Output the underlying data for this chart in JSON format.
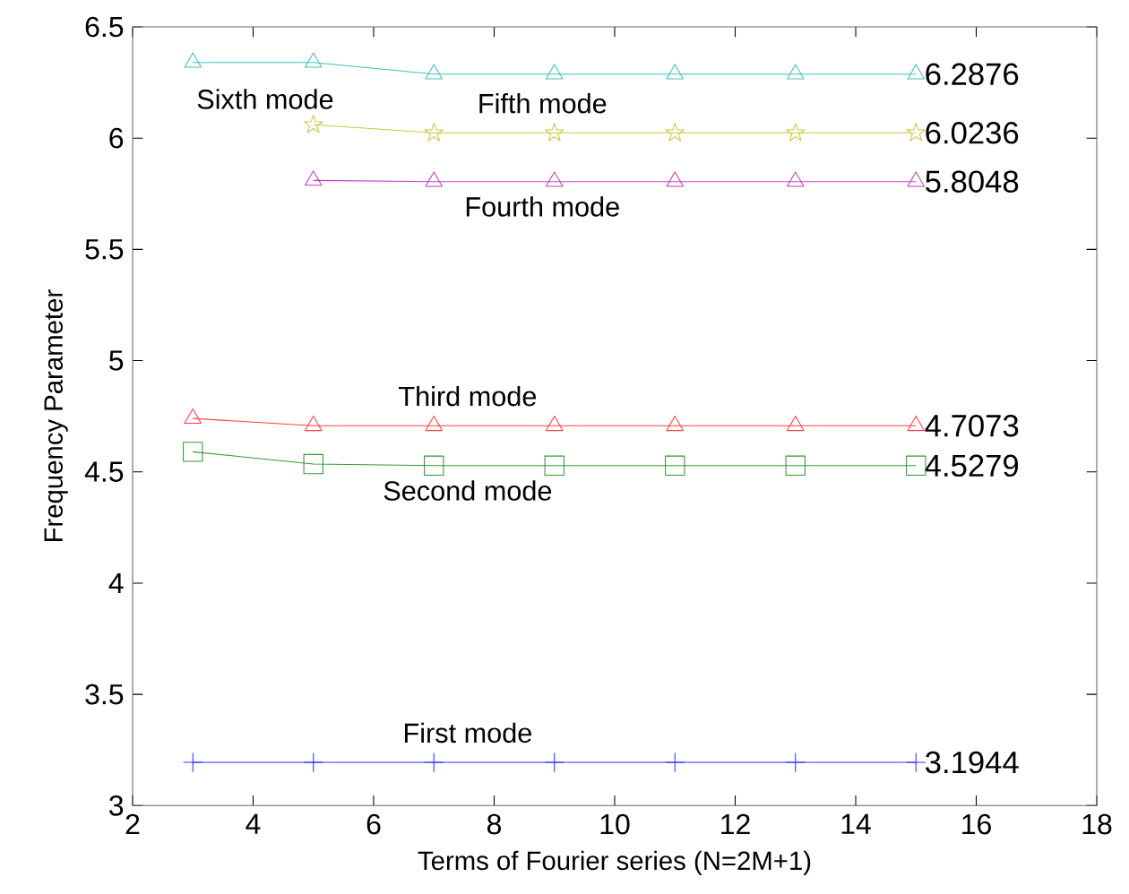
{
  "chart_data": {
    "type": "line",
    "xlabel": "Terms of Fourier series (N=2M+1)",
    "ylabel": "Frequency Parameter",
    "xlim": [
      2,
      18
    ],
    "ylim": [
      3,
      6.5
    ],
    "xticks": [
      2,
      4,
      6,
      8,
      10,
      12,
      14,
      16,
      18
    ],
    "yticks": [
      3,
      {
        "value": 3.5,
        "label": "3.5"
      },
      4,
      {
        "value": 4.5,
        "label": "4.5"
      },
      5,
      {
        "value": 5.5,
        "label": "5.5"
      },
      6,
      {
        "value": 6.5,
        "label": "6.5"
      }
    ],
    "grid": false,
    "legend": false,
    "line_style": "solid",
    "series": [
      {
        "name": "First mode",
        "color": "#3333ff",
        "marker": "cross",
        "x": [
          3,
          5,
          7,
          9,
          11,
          13,
          15
        ],
        "values": [
          3.1944,
          3.1944,
          3.1944,
          3.1944,
          3.1944,
          3.1944,
          3.1944
        ],
        "value_labels": [
          null,
          null,
          null,
          null,
          null,
          null,
          "3.1944"
        ]
      },
      {
        "name": "Second mode",
        "color": "#339933",
        "marker": "square",
        "x": [
          3,
          5,
          7,
          9,
          11,
          13,
          15
        ],
        "values": [
          4.59,
          4.535,
          4.5279,
          4.5279,
          4.5279,
          4.5279,
          4.5279
        ],
        "value_labels": [
          null,
          null,
          null,
          null,
          null,
          null,
          "4.5279"
        ]
      },
      {
        "name": "Third mode",
        "color": "#ff4040",
        "marker": "triangle",
        "x": [
          3,
          5,
          7,
          9,
          11,
          13,
          15
        ],
        "values": [
          4.74,
          4.7073,
          4.7073,
          4.7073,
          4.7073,
          4.7073,
          4.7073
        ],
        "value_labels": [
          null,
          null,
          null,
          null,
          null,
          null,
          "4.7073"
        ]
      },
      {
        "name": "Fourth mode",
        "color": "#c040c0",
        "marker": "triangle",
        "x": [
          5,
          7,
          9,
          11,
          13,
          15
        ],
        "values": [
          5.81,
          5.8048,
          5.8048,
          5.8048,
          5.8048,
          5.8048
        ],
        "value_labels": [
          null,
          null,
          null,
          null,
          null,
          "5.8048"
        ]
      },
      {
        "name": "Fifth mode",
        "color": "#c8c840",
        "marker": "star",
        "x": [
          5,
          7,
          9,
          11,
          13,
          15
        ],
        "values": [
          6.06,
          6.0236,
          6.0236,
          6.0236,
          6.0236,
          6.0236
        ],
        "value_labels": [
          null,
          null,
          null,
          null,
          null,
          "6.0236"
        ]
      },
      {
        "name": "Sixth mode",
        "color": "#40c0c0",
        "marker": "triangle",
        "x": [
          3,
          5,
          7,
          9,
          11,
          13,
          15
        ],
        "values": [
          6.34,
          6.34,
          6.2876,
          6.2876,
          6.2876,
          6.2876,
          6.2876
        ],
        "value_labels": [
          null,
          null,
          null,
          null,
          null,
          null,
          "6.2876"
        ]
      }
    ]
  }
}
